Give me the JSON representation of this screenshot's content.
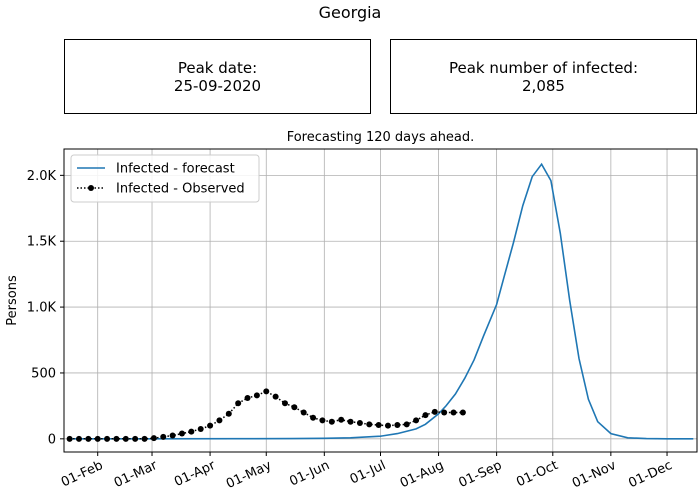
{
  "title": "Georgia",
  "peak_date": {
    "label": "Peak date:",
    "value": "25-09-2020"
  },
  "peak_number": {
    "label": "Peak number of infected:",
    "value": "2,085"
  },
  "colors": {
    "forecast": "#1f77b4",
    "observed": "#000000",
    "grid": "#b0b0b0"
  },
  "chart_data": {
    "type": "line",
    "subtitle": "Forecasting 120 days ahead.",
    "ylabel": "Persons",
    "xlabel": "",
    "x_type": "date",
    "xlim": [
      "2020-01-14",
      "2020-12-17"
    ],
    "ylim": [
      -100,
      2200
    ],
    "grid": true,
    "legend_position": "top-left",
    "x_ticks": [
      {
        "date": "2020-02-01",
        "label": "01-Feb"
      },
      {
        "date": "2020-03-01",
        "label": "01-Mar"
      },
      {
        "date": "2020-04-01",
        "label": "01-Apr"
      },
      {
        "date": "2020-05-01",
        "label": "01-May"
      },
      {
        "date": "2020-06-01",
        "label": "01-Jun"
      },
      {
        "date": "2020-07-01",
        "label": "01-Jul"
      },
      {
        "date": "2020-08-01",
        "label": "01-Aug"
      },
      {
        "date": "2020-09-01",
        "label": "01-Sep"
      },
      {
        "date": "2020-10-01",
        "label": "01-Oct"
      },
      {
        "date": "2020-11-01",
        "label": "01-Nov"
      },
      {
        "date": "2020-12-01",
        "label": "01-Dec"
      }
    ],
    "y_ticks": [
      {
        "value": 0,
        "label": "0"
      },
      {
        "value": 500,
        "label": "500"
      },
      {
        "value": 1000,
        "label": "1.0K"
      },
      {
        "value": 1500,
        "label": "1.5K"
      },
      {
        "value": 2000,
        "label": "2.0K"
      }
    ],
    "series": [
      {
        "name": "Infected - forecast",
        "style": "line",
        "x": [
          "2020-01-17",
          "2020-03-01",
          "2020-04-15",
          "2020-05-15",
          "2020-06-01",
          "2020-06-15",
          "2020-07-01",
          "2020-07-10",
          "2020-07-20",
          "2020-07-25",
          "2020-08-01",
          "2020-08-05",
          "2020-08-10",
          "2020-08-15",
          "2020-08-20",
          "2020-08-25",
          "2020-09-01",
          "2020-09-05",
          "2020-09-10",
          "2020-09-15",
          "2020-09-20",
          "2020-09-25",
          "2020-09-30",
          "2020-10-05",
          "2020-10-10",
          "2020-10-15",
          "2020-10-20",
          "2020-10-25",
          "2020-11-01",
          "2020-11-10",
          "2020-11-20",
          "2020-12-01",
          "2020-12-15"
        ],
        "y": [
          0,
          0,
          1,
          2,
          4,
          8,
          20,
          40,
          75,
          110,
          190,
          250,
          340,
          460,
          600,
          780,
          1020,
          1230,
          1490,
          1770,
          1990,
          2085,
          1960,
          1560,
          1050,
          610,
          300,
          130,
          40,
          8,
          2,
          0,
          0
        ]
      },
      {
        "name": "Infected - Observed",
        "style": "dotted-markers",
        "x": [
          "2020-01-17",
          "2020-01-22",
          "2020-01-27",
          "2020-02-01",
          "2020-02-06",
          "2020-02-11",
          "2020-02-16",
          "2020-02-21",
          "2020-02-26",
          "2020-03-02",
          "2020-03-07",
          "2020-03-12",
          "2020-03-17",
          "2020-03-22",
          "2020-03-27",
          "2020-04-01",
          "2020-04-06",
          "2020-04-11",
          "2020-04-16",
          "2020-04-21",
          "2020-04-26",
          "2020-05-01",
          "2020-05-06",
          "2020-05-11",
          "2020-05-16",
          "2020-05-21",
          "2020-05-26",
          "2020-05-31",
          "2020-06-05",
          "2020-06-10",
          "2020-06-15",
          "2020-06-20",
          "2020-06-25",
          "2020-06-30",
          "2020-07-05",
          "2020-07-10",
          "2020-07-15",
          "2020-07-20",
          "2020-07-25",
          "2020-07-30",
          "2020-08-04",
          "2020-08-09",
          "2020-08-14"
        ],
        "y": [
          0,
          0,
          0,
          0,
          0,
          0,
          0,
          0,
          0,
          5,
          15,
          25,
          40,
          55,
          75,
          100,
          140,
          190,
          270,
          310,
          330,
          360,
          320,
          270,
          240,
          200,
          160,
          140,
          130,
          145,
          130,
          120,
          110,
          105,
          100,
          105,
          110,
          140,
          180,
          205,
          200,
          200,
          200
        ]
      }
    ]
  }
}
